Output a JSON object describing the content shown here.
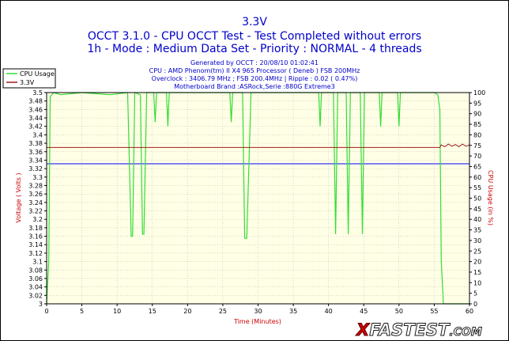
{
  "chart_data": {
    "type": "line",
    "title": "3.3V",
    "subtitle_lines": [
      "OCCT 3.1.0 - CPU OCCT Test - Test Completed without errors",
      "1h - Mode : Medium Data Set - Priority : NORMAL - 4 threads"
    ],
    "info_lines": [
      "Generated by OCCT : 20/08/10 01:02:41",
      "CPU : AMD Phenom(tm) II X4 965 Processor ( Deneb ) FSB 200MHz",
      "Overclock : 3406.79 MHz ; FSB 200.4MHz | Ripple : 0.02 ( 0.47%)",
      "Motherboard Brand :ASRock,Serie :880G Extreme3"
    ],
    "xlabel": "Time (Minutes)",
    "ylabel": "Voltage ( Volts )",
    "y2label": "CPU Usage (in %)",
    "xlim": [
      0,
      60
    ],
    "ylim": [
      3.0,
      3.5
    ],
    "y2lim": [
      0,
      100
    ],
    "x_ticks": [
      "0",
      "5",
      "10",
      "15",
      "20",
      "25",
      "30",
      "35",
      "40",
      "45",
      "50",
      "55",
      "60"
    ],
    "y_ticks": [
      "3.5",
      "3.48",
      "3.46",
      "3.44",
      "3.42",
      "3.4",
      "3.38",
      "3.36",
      "3.34",
      "3.32",
      "3.3",
      "3.28",
      "3.26",
      "3.24",
      "3.22",
      "3.2",
      "3.18",
      "3.16",
      "3.14",
      "3.12",
      "3.1",
      "3.08",
      "3.06",
      "3.04",
      "3.02",
      "3"
    ],
    "y2_ticks": [
      "100",
      "95",
      "90",
      "85",
      "80",
      "75",
      "70",
      "65",
      "60",
      "55",
      "50",
      "45",
      "40",
      "35",
      "30",
      "25",
      "20",
      "15",
      "10",
      "5",
      "0"
    ],
    "legend": [
      "CPU Usage",
      "3.3V"
    ],
    "legend_position": "top-left",
    "grid": true,
    "series": [
      {
        "name": "CPU Usage",
        "axis": "right",
        "color": "#33dd33",
        "x": [
          0,
          0.3,
          0.5,
          1,
          2,
          5,
          9,
          11.5,
          12,
          12.2,
          12.5,
          13.3,
          13.6,
          13.8,
          14.2,
          15.2,
          15.4,
          15.6,
          17,
          17.2,
          17.4,
          20,
          26,
          26.2,
          26.4,
          27.8,
          28.1,
          28.4,
          29,
          35,
          38.6,
          38.8,
          39,
          40.7,
          41,
          41.3,
          42.5,
          42.8,
          43.1,
          44.5,
          44.8,
          45.1,
          47.2,
          47.4,
          47.6,
          49.8,
          50,
          50.2,
          55,
          55.5,
          55.8,
          56,
          56.3,
          60
        ],
        "y": [
          0,
          20,
          98,
          100,
          99,
          100,
          99,
          100,
          32,
          32,
          100,
          99,
          33,
          33,
          100,
          100,
          86,
          100,
          100,
          84,
          100,
          100,
          100,
          86,
          100,
          100,
          31,
          31,
          100,
          100,
          100,
          84,
          100,
          100,
          33,
          100,
          100,
          33,
          100,
          100,
          33,
          100,
          100,
          84,
          100,
          100,
          84,
          100,
          100,
          99,
          92,
          20,
          0,
          0
        ]
      },
      {
        "name": "3.3V",
        "axis": "left",
        "color": "#a01c1c",
        "x": [
          0,
          55.8,
          56,
          56.5,
          57,
          57.5,
          58,
          58.5,
          59,
          59.5,
          60
        ],
        "y": [
          3.37,
          3.37,
          3.376,
          3.372,
          3.378,
          3.373,
          3.377,
          3.372,
          3.378,
          3.373,
          3.376
        ]
      }
    ],
    "reference_line": {
      "value": 3.3314,
      "color": "#0000ff"
    },
    "plot_background": "#ffffe6",
    "grid_color": "#b0b0b0"
  },
  "watermark": {
    "text_a": "X",
    "text_b": "FASTEST",
    "text_c": ".COM"
  }
}
